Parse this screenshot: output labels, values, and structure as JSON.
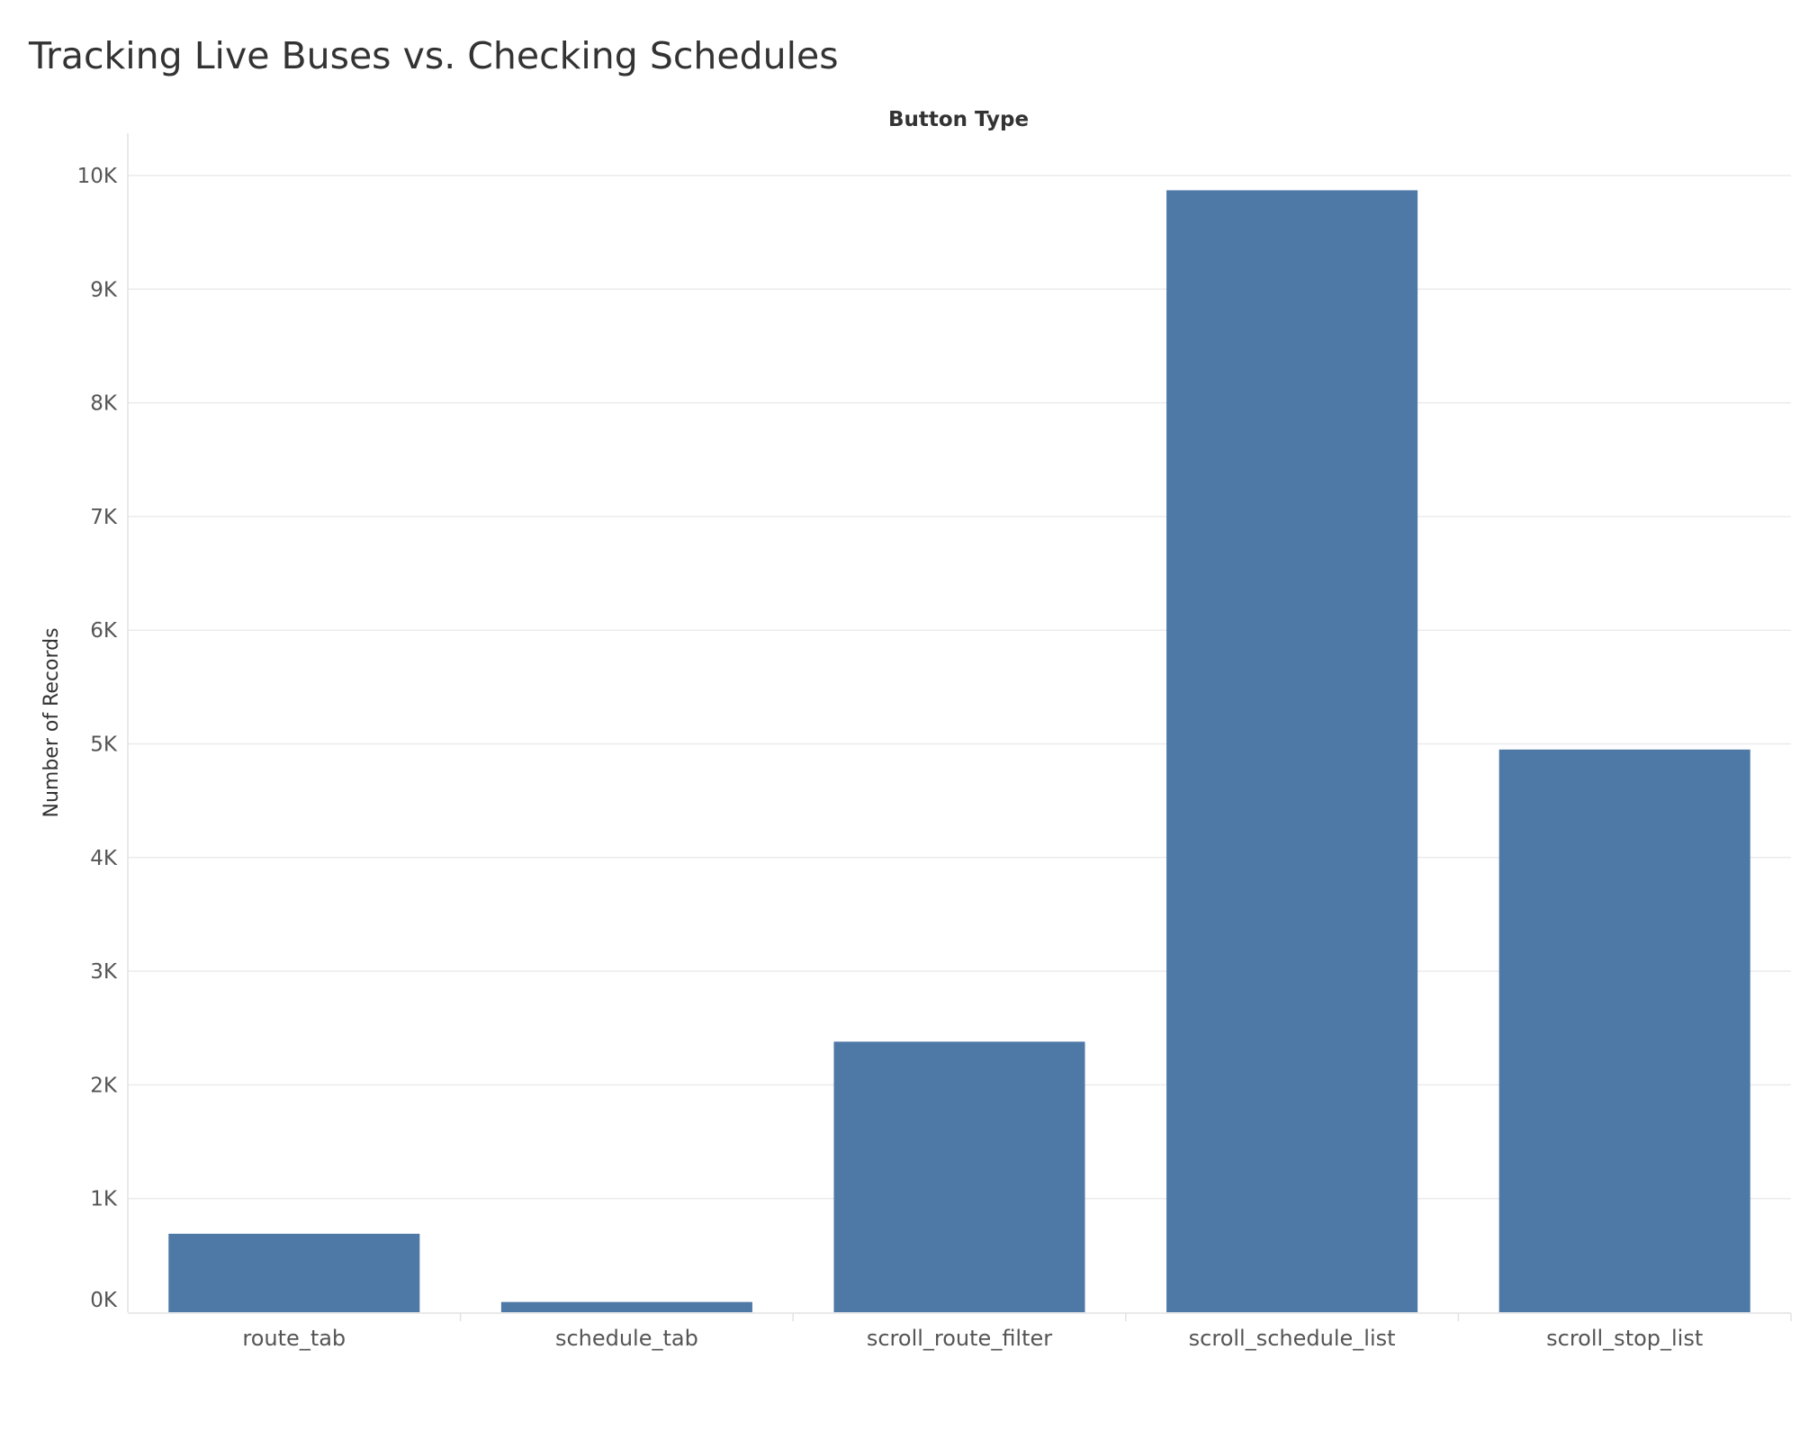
{
  "chart_data": {
    "type": "bar",
    "title": "Tracking Live Buses vs. Checking Schedules",
    "column_header": "Button Type",
    "ylabel": "Number of Records",
    "categories": [
      "route_tab",
      "schedule_tab",
      "scroll_route_filter",
      "scroll_schedule_list",
      "scroll_stop_list"
    ],
    "values": [
      690,
      90,
      2380,
      9870,
      4950
    ],
    "ylim": [
      0,
      10000
    ],
    "yticks": [
      {
        "value": 0,
        "label": "0K"
      },
      {
        "value": 1000,
        "label": "1K"
      },
      {
        "value": 2000,
        "label": "2K"
      },
      {
        "value": 3000,
        "label": "3K"
      },
      {
        "value": 4000,
        "label": "4K"
      },
      {
        "value": 5000,
        "label": "5K"
      },
      {
        "value": 6000,
        "label": "6K"
      },
      {
        "value": 7000,
        "label": "7K"
      },
      {
        "value": 8000,
        "label": "8K"
      },
      {
        "value": 9000,
        "label": "9K"
      },
      {
        "value": 10000,
        "label": "10K"
      }
    ],
    "grid": true,
    "bar_color": "#4e79a7"
  }
}
